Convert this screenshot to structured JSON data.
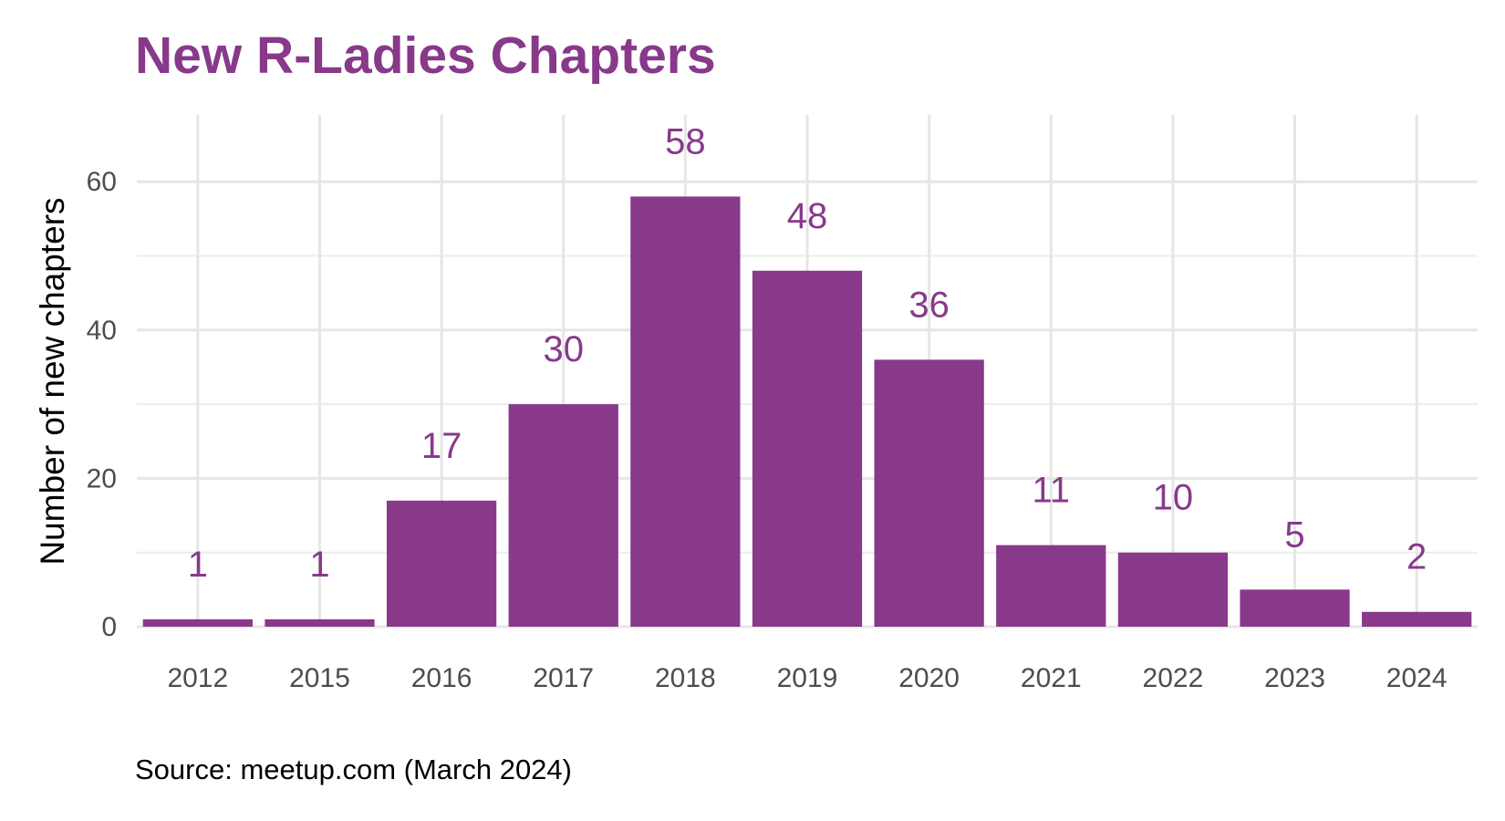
{
  "chart_data": {
    "type": "bar",
    "title": "New R-Ladies Chapters",
    "ylabel": "Number of new chapters",
    "xlabel": "",
    "caption": "Source: meetup.com (March 2024)",
    "categories": [
      "2012",
      "2015",
      "2016",
      "2017",
      "2018",
      "2019",
      "2020",
      "2021",
      "2022",
      "2023",
      "2024"
    ],
    "values": [
      1,
      1,
      17,
      30,
      58,
      48,
      36,
      11,
      10,
      5,
      2
    ],
    "ylim": [
      0,
      69
    ],
    "yticks": [
      0,
      20,
      40,
      60
    ],
    "grid": true,
    "legend": "none",
    "bar_color": "#88398A",
    "label_color": "#88398A"
  }
}
